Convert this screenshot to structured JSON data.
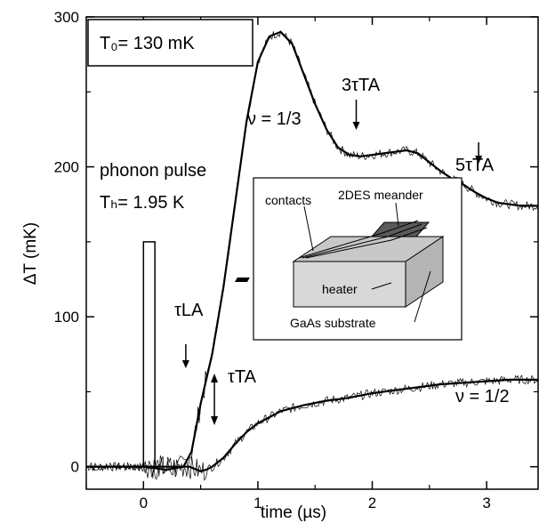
{
  "chart_data": {
    "type": "line",
    "xlabel": "time (µs)",
    "ylabel": "ΔT (mK)",
    "xlim": [
      -0.5,
      3.45
    ],
    "ylim": [
      -15,
      300
    ],
    "xticks": [
      0,
      1,
      2,
      3
    ],
    "yticks": [
      0,
      100,
      200,
      300
    ],
    "grid": false,
    "series": [
      {
        "name": "ν = 1/3",
        "x": [
          -0.5,
          -0.3,
          0.0,
          0.2,
          0.35,
          0.42,
          0.5,
          0.6,
          0.7,
          0.8,
          0.9,
          1.0,
          1.1,
          1.2,
          1.3,
          1.4,
          1.5,
          1.6,
          1.7,
          1.8,
          1.9,
          2.0,
          2.1,
          2.2,
          2.3,
          2.4,
          2.5,
          2.6,
          2.7,
          2.8,
          2.9,
          3.0,
          3.1,
          3.2,
          3.3,
          3.45
        ],
        "y": [
          0,
          0,
          0,
          -2,
          0,
          10,
          42,
          75,
          120,
          175,
          230,
          270,
          287,
          290,
          282,
          262,
          242,
          225,
          213,
          208,
          207,
          208,
          209,
          210,
          211,
          209,
          203,
          197,
          192,
          188,
          183,
          179,
          176,
          175,
          174,
          174
        ]
      },
      {
        "name": "ν = 1/2",
        "x": [
          -0.5,
          -0.3,
          0.0,
          0.2,
          0.4,
          0.5,
          0.55,
          0.6,
          0.7,
          0.8,
          0.9,
          1.0,
          1.1,
          1.2,
          1.4,
          1.6,
          1.8,
          2.0,
          2.2,
          2.4,
          2.6,
          2.8,
          3.0,
          3.2,
          3.45
        ],
        "y": [
          0,
          0,
          0,
          0,
          0,
          -3,
          -2,
          0,
          6,
          15,
          23,
          29,
          33,
          37,
          41,
          44,
          46,
          49,
          51,
          53,
          55,
          56,
          57,
          58,
          58
        ]
      }
    ],
    "phonon_pulse": {
      "start": 0.0,
      "end": 0.1,
      "height": 150
    },
    "annotations": {
      "legend_box": "T₀= 130 mK",
      "phonon_pulse": "phonon pulse",
      "heater_temp": "Tₕ= 1.95 K",
      "nu_13": "ν = 1/3",
      "nu_12": "ν = 1/2",
      "tau_la": "τLA",
      "tau_ta": "τTA",
      "three_tau_ta": "3τTA",
      "five_tau_ta": "5τTA"
    },
    "markers": {
      "tau_la": 0.37,
      "tau_ta": 0.62,
      "three_tau_ta": 1.86,
      "five_tau_ta": 2.93
    },
    "inset": {
      "contacts": "contacts",
      "meander": "2DES meander",
      "heater": "heater",
      "substrate": "GaAs substrate"
    }
  }
}
